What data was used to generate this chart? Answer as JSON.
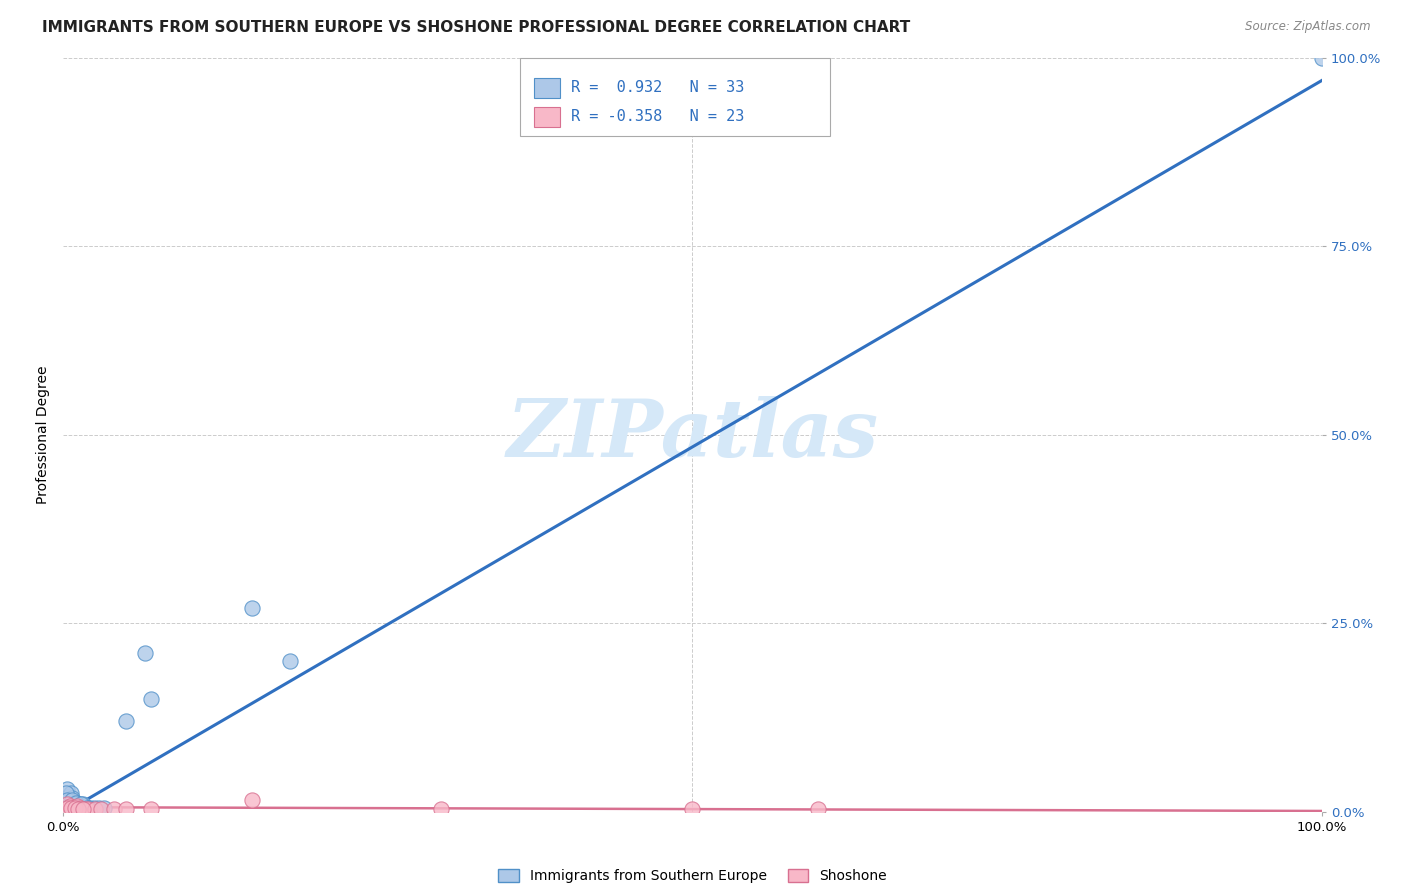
{
  "title": "IMMIGRANTS FROM SOUTHERN EUROPE VS SHOSHONE PROFESSIONAL DEGREE CORRELATION CHART",
  "source": "Source: ZipAtlas.com",
  "ylabel": "Professional Degree",
  "xlim": [
    0.0,
    1.0
  ],
  "ylim": [
    0.0,
    1.0
  ],
  "ytick_values": [
    0.0,
    0.25,
    0.5,
    0.75,
    1.0
  ],
  "ytick_labels_right": [
    "0.0%",
    "25.0%",
    "50.0%",
    "75.0%",
    "100.0%"
  ],
  "xtick_values": [
    0.0,
    1.0
  ],
  "xtick_labels": [
    "0.0%",
    "100.0%"
  ],
  "blue_color_face": "#adc8e8",
  "blue_color_edge": "#5090c8",
  "blue_line_color": "#3070c0",
  "pink_color_face": "#f8b8c8",
  "pink_color_edge": "#d87090",
  "pink_line_color": "#d87090",
  "blue_R": 0.932,
  "blue_N": 33,
  "pink_R": -0.358,
  "pink_N": 23,
  "watermark_text": "ZIPatlas",
  "watermark_color": "#d5e8f8",
  "legend_label_blue": "Immigrants from Southern Europe",
  "legend_label_pink": "Shoshone",
  "grid_color": "#cccccc",
  "background": "#ffffff",
  "right_tick_color": "#3070c0",
  "blue_line_x0": 0.0,
  "blue_line_y0": -0.002,
  "blue_line_x1": 1.0,
  "blue_line_y1": 0.97,
  "pink_line_x0": 0.0,
  "pink_line_y0": 0.006,
  "pink_line_x1": 1.0,
  "pink_line_y1": 0.001,
  "blue_x": [
    0.002,
    0.003,
    0.004,
    0.005,
    0.006,
    0.007,
    0.008,
    0.009,
    0.01,
    0.011,
    0.012,
    0.013,
    0.015,
    0.016,
    0.018,
    0.02,
    0.022,
    0.025,
    0.028,
    0.032,
    0.05,
    0.065,
    0.07,
    0.15,
    0.18,
    0.002,
    0.003,
    0.005,
    0.007,
    0.01,
    0.014,
    0.019,
    1.0
  ],
  "blue_y": [
    0.02,
    0.03,
    0.02,
    0.015,
    0.025,
    0.018,
    0.01,
    0.012,
    0.01,
    0.008,
    0.01,
    0.01,
    0.008,
    0.01,
    0.005,
    0.005,
    0.005,
    0.005,
    0.005,
    0.005,
    0.12,
    0.21,
    0.15,
    0.27,
    0.2,
    0.025,
    0.015,
    0.01,
    0.015,
    0.012,
    0.01,
    0.005,
    1.0
  ],
  "pink_x": [
    0.003,
    0.005,
    0.007,
    0.009,
    0.011,
    0.013,
    0.015,
    0.018,
    0.02,
    0.025,
    0.03,
    0.04,
    0.05,
    0.07,
    0.3,
    0.5,
    0.6,
    0.003,
    0.006,
    0.009,
    0.012,
    0.016,
    0.15
  ],
  "pink_y": [
    0.01,
    0.008,
    0.005,
    0.005,
    0.008,
    0.005,
    0.003,
    0.003,
    0.003,
    0.003,
    0.003,
    0.003,
    0.003,
    0.003,
    0.003,
    0.003,
    0.003,
    0.005,
    0.005,
    0.005,
    0.003,
    0.003,
    0.015
  ],
  "title_fontsize": 11,
  "tick_fontsize": 9.5
}
